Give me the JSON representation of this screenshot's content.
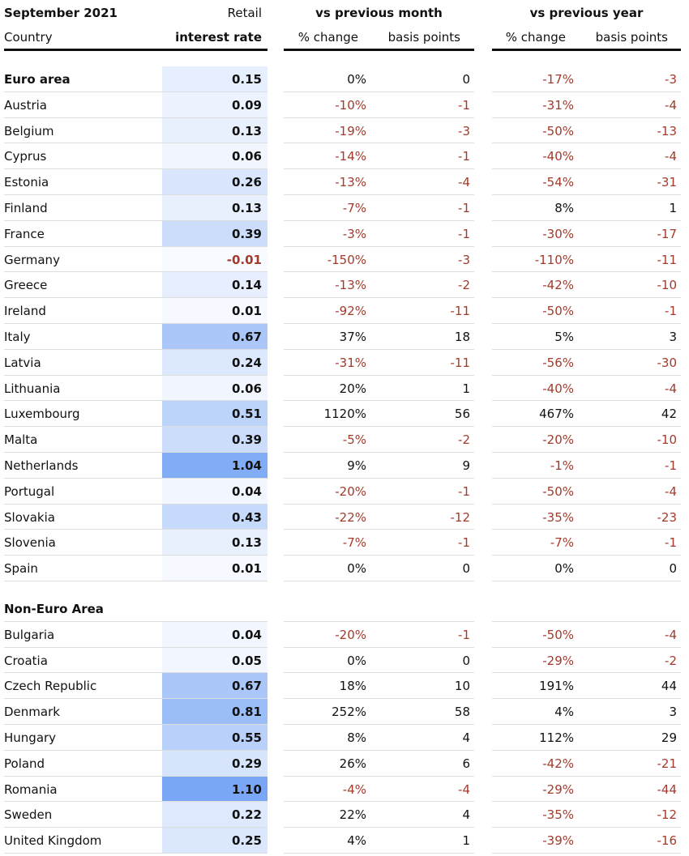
{
  "header": {
    "title": "September 2021",
    "retail": "Retail",
    "country": "Country",
    "interest_rate": "interest rate",
    "vs_month": "vs previous month",
    "vs_year": "vs previous year",
    "pct_change": "% change",
    "basis_points": "basis points"
  },
  "sections": [
    {
      "name": "Euro area",
      "summary": [
        "0.15",
        "0%",
        "0",
        "-17%",
        "-3"
      ],
      "rows": [
        [
          "Austria",
          "0.09",
          "-10%",
          "-1",
          "-31%",
          "-4"
        ],
        [
          "Belgium",
          "0.13",
          "-19%",
          "-3",
          "-50%",
          "-13"
        ],
        [
          "Cyprus",
          "0.06",
          "-14%",
          "-1",
          "-40%",
          "-4"
        ],
        [
          "Estonia",
          "0.26",
          "-13%",
          "-4",
          "-54%",
          "-31"
        ],
        [
          "Finland",
          "0.13",
          "-7%",
          "-1",
          "8%",
          "1"
        ],
        [
          "France",
          "0.39",
          "-3%",
          "-1",
          "-30%",
          "-17"
        ],
        [
          "Germany",
          "-0.01",
          "-150%",
          "-3",
          "-110%",
          "-11"
        ],
        [
          "Greece",
          "0.14",
          "-13%",
          "-2",
          "-42%",
          "-10"
        ],
        [
          "Ireland",
          "0.01",
          "-92%",
          "-11",
          "-50%",
          "-1"
        ],
        [
          "Italy",
          "0.67",
          "37%",
          "18",
          "5%",
          "3"
        ],
        [
          "Latvia",
          "0.24",
          "-31%",
          "-11",
          "-56%",
          "-30"
        ],
        [
          "Lithuania",
          "0.06",
          "20%",
          "1",
          "-40%",
          "-4"
        ],
        [
          "Luxembourg",
          "0.51",
          "1120%",
          "56",
          "467%",
          "42"
        ],
        [
          "Malta",
          "0.39",
          "-5%",
          "-2",
          "-20%",
          "-10"
        ],
        [
          "Netherlands",
          "1.04",
          "9%",
          "9",
          "-1%",
          "-1"
        ],
        [
          "Portugal",
          "0.04",
          "-20%",
          "-1",
          "-50%",
          "-4"
        ],
        [
          "Slovakia",
          "0.43",
          "-22%",
          "-12",
          "-35%",
          "-23"
        ],
        [
          "Slovenia",
          "0.13",
          "-7%",
          "-1",
          "-7%",
          "-1"
        ],
        [
          "Spain",
          "0.01",
          "0%",
          "0",
          "0%",
          "0"
        ]
      ]
    },
    {
      "name": "Non-Euro Area",
      "rows": [
        [
          "Bulgaria",
          "0.04",
          "-20%",
          "-1",
          "-50%",
          "-4"
        ],
        [
          "Croatia",
          "0.05",
          "0%",
          "0",
          "-29%",
          "-2"
        ],
        [
          "Czech Republic",
          "0.67",
          "18%",
          "10",
          "191%",
          "44"
        ],
        [
          "Denmark",
          "0.81",
          "252%",
          "58",
          "4%",
          "3"
        ],
        [
          "Hungary",
          "0.55",
          "8%",
          "4",
          "112%",
          "29"
        ],
        [
          "Poland",
          "0.29",
          "26%",
          "6",
          "-42%",
          "-21"
        ],
        [
          "Romania",
          "1.10",
          "-4%",
          "-4",
          "-29%",
          "-44"
        ],
        [
          "Sweden",
          "0.22",
          "22%",
          "4",
          "-35%",
          "-12"
        ],
        [
          "United Kingdom",
          "0.25",
          "4%",
          "1",
          "-39%",
          "-16"
        ]
      ]
    }
  ]
}
